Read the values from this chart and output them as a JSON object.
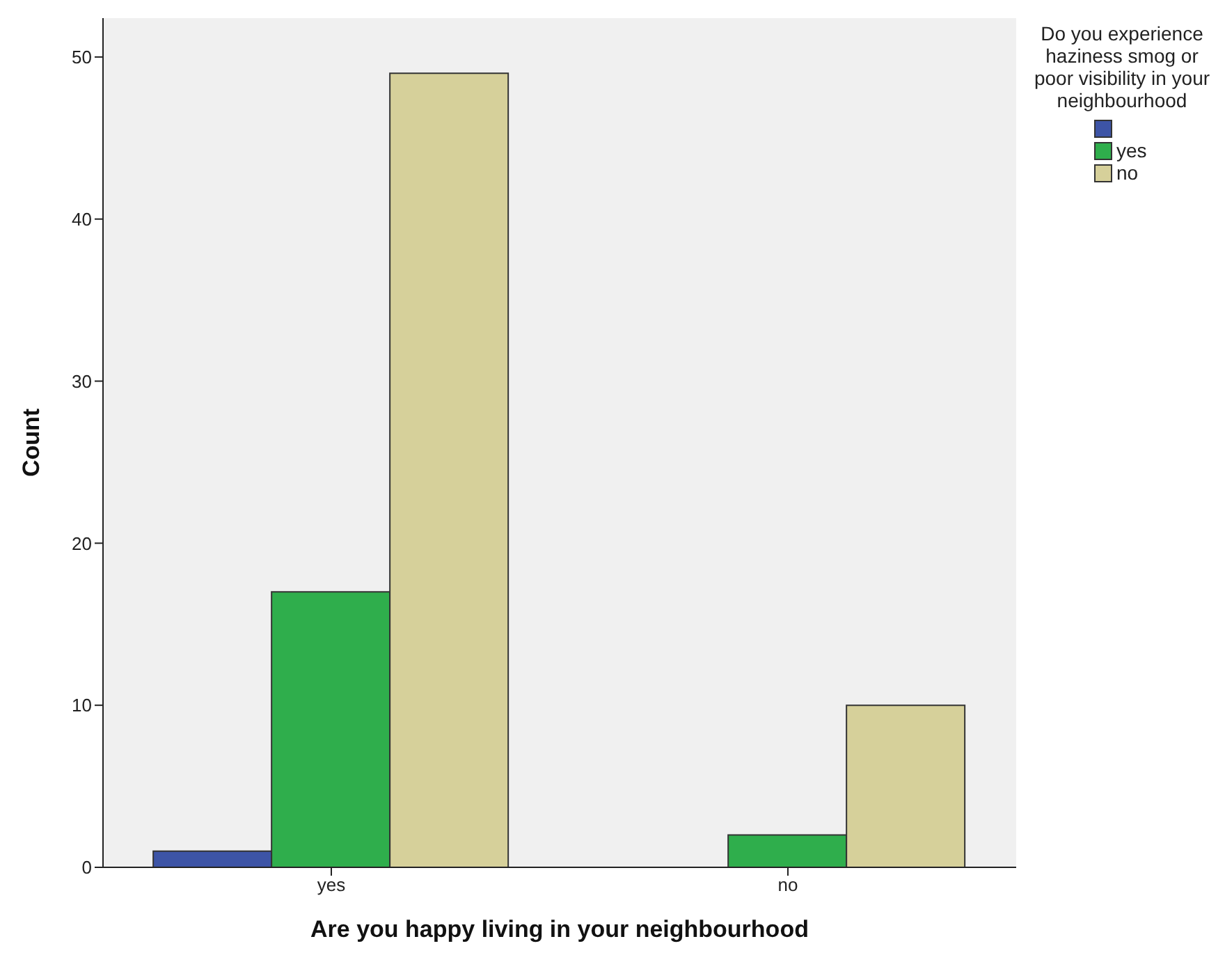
{
  "chart_data": {
    "type": "bar",
    "xlabel": "Are you happy living in your neighbourhood",
    "ylabel": "Count",
    "legend_title": "Do you experience haziness smog or poor visibility in your neighbourhood",
    "categories": [
      "yes",
      "no"
    ],
    "series": [
      {
        "color": "#3d54a6",
        "values": [
          1,
          null
        ]
      },
      {
        "name": "yes",
        "color": "#2fae4c",
        "values": [
          17,
          2
        ]
      },
      {
        "name": "no",
        "color": "#d6d09a",
        "values": [
          49,
          10
        ]
      }
    ],
    "ylim": [
      0,
      52.4
    ],
    "yticks": [
      0,
      10,
      20,
      30,
      40,
      50
    ],
    "legend": "right"
  }
}
